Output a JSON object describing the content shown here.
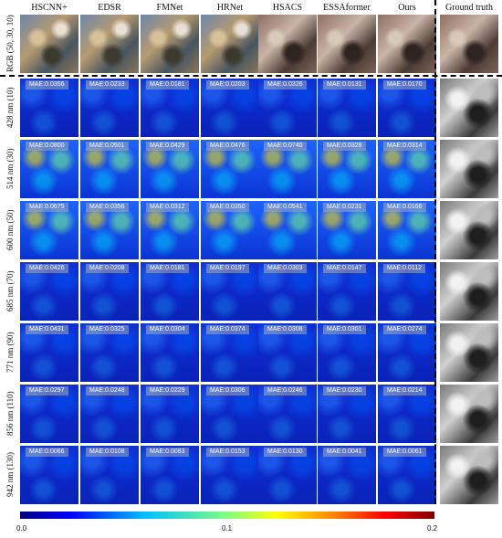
{
  "columns": [
    "HSCNN+",
    "EDSR",
    "FMNet",
    "HRNet",
    "HSACS",
    "ESSAformer",
    "Ours",
    "Ground truth"
  ],
  "rows": [
    {
      "label": "RGB (50, 30, 10)",
      "maes": []
    },
    {
      "label": "428 nm (10)",
      "maes": [
        "MAE:0.0356",
        "MAE:0.0233",
        "MAE:0.0181",
        "MAE:0.0203",
        "MAE:0.0326",
        "MAE:0.0131",
        "MAE:0.0170"
      ]
    },
    {
      "label": "514 nm (30)",
      "maes": [
        "MAE:0.0800",
        "MAE:0.0501",
        "MAE:0.0429",
        "MAE:0.0476",
        "MAE:0.0740",
        "MAE:0.0328",
        "MAE:0.0314"
      ]
    },
    {
      "label": "600 nm (50)",
      "maes": [
        "MAE:0.0675",
        "MAE:0.0356",
        "MAE:0.0312",
        "MAE:0.0350",
        "MAE:0.0541",
        "MAE:0.0231",
        "MAE:0.0166"
      ]
    },
    {
      "label": "685 nm (70)",
      "maes": [
        "MAE:0.0426",
        "MAE:0.0208",
        "MAE:0.0181",
        "MAE:0.0197",
        "MAE:0.0303",
        "MAE:0.0147",
        "MAE:0.0112"
      ]
    },
    {
      "label": "771 nm (90)",
      "maes": [
        "MAE:0.0431",
        "MAE:0.0325",
        "MAE:0.0304",
        "MAE:0.0374",
        "MAE:0.0308",
        "MAE:0.0301",
        "MAE:0.0274"
      ]
    },
    {
      "label": "856 nm (110)",
      "maes": [
        "MAE:0.0297",
        "MAE:0.0248",
        "MAE:0.0229",
        "MAE:0.0306",
        "MAE:0.0246",
        "MAE:0.0230",
        "MAE:0.0214"
      ]
    },
    {
      "label": "942 nm (130)",
      "maes": [
        "MAE:0.0066",
        "MAE:0.0108",
        "MAE:0.0083",
        "MAE:0.0153",
        "MAE:0.0130",
        "MAE:0.0041",
        "MAE:0.0061"
      ]
    }
  ],
  "colorbar": {
    "ticks": [
      "0.0",
      "0.1",
      "0.2"
    ]
  }
}
